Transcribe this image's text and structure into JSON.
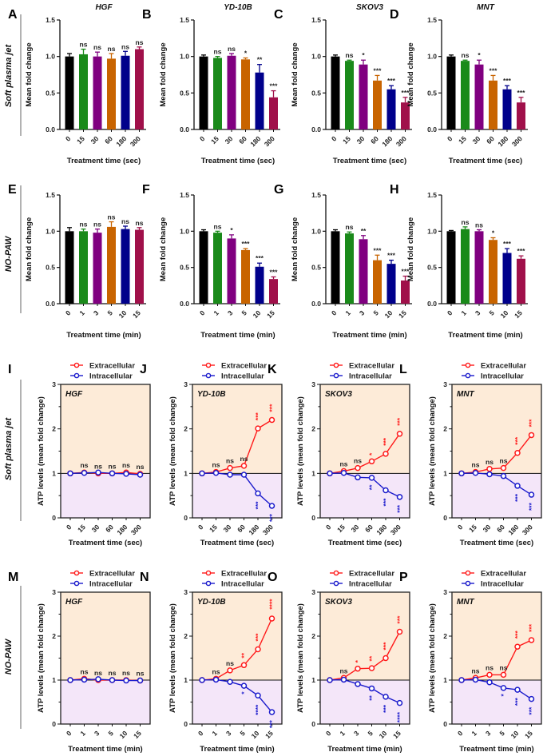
{
  "row_labels": [
    "Soft plasma jet",
    "NO-PAW",
    "Soft plasma jet",
    "NO-PAW"
  ],
  "colors": {
    "bars": [
      "#000000",
      "#1a8a1a",
      "#800080",
      "#c86400",
      "#00008b",
      "#a0104a"
    ],
    "extracellular": "#ff1a1a",
    "intracellular": "#1a1acc",
    "upper_region": "#fdebd8",
    "lower_region": "#f4e6f9"
  },
  "chart_data": [
    {
      "letter": "A",
      "type": "bar",
      "title": "HGF",
      "ylabel": "Mean fold change",
      "xlabel": "Treatment time (sec)",
      "categories": [
        "0",
        "15",
        "30",
        "60",
        "180",
        "300"
      ],
      "ylim": [
        0,
        1.5
      ],
      "yticks": [
        "0.0",
        "0.5",
        "1.0",
        "1.5"
      ],
      "values": [
        1.0,
        1.03,
        1.0,
        0.97,
        1.01,
        1.1
      ],
      "errors": [
        0.04,
        0.07,
        0.06,
        0.07,
        0.06,
        0.03
      ],
      "significance": [
        "",
        "ns",
        "ns",
        "ns",
        "ns",
        "ns"
      ]
    },
    {
      "letter": "B",
      "type": "bar",
      "title": "YD-10B",
      "ylabel": "Mean fold change",
      "xlabel": "Treatment time (sec)",
      "categories": [
        "0",
        "15",
        "30",
        "60",
        "180",
        "300"
      ],
      "ylim": [
        0,
        1.5
      ],
      "yticks": [
        "0.0",
        "0.5",
        "1.0",
        "1.5"
      ],
      "values": [
        1.0,
        0.98,
        1.01,
        0.96,
        0.78,
        0.44
      ],
      "errors": [
        0.02,
        0.02,
        0.03,
        0.02,
        0.11,
        0.09
      ],
      "significance": [
        "",
        "ns",
        "ns",
        "*",
        "**",
        "***"
      ]
    },
    {
      "letter": "C",
      "type": "bar",
      "title": "SKOV3",
      "ylabel": "Mean fold change",
      "xlabel": "Treatment time (sec)",
      "categories": [
        "0",
        "15",
        "30",
        "60",
        "180",
        "300"
      ],
      "ylim": [
        0,
        1.5
      ],
      "yticks": [
        "0.0",
        "0.5",
        "1.0",
        "1.5"
      ],
      "values": [
        1.0,
        0.94,
        0.89,
        0.67,
        0.55,
        0.37
      ],
      "errors": [
        0.02,
        0.01,
        0.06,
        0.07,
        0.05,
        0.07
      ],
      "significance": [
        "",
        "ns",
        "*",
        "***",
        "***",
        "***"
      ]
    },
    {
      "letter": "D",
      "type": "bar",
      "title": "MNT",
      "ylabel": "Mean fold change",
      "xlabel": "Treatment time (sec)",
      "categories": [
        "0",
        "15",
        "30",
        "60",
        "180",
        "300"
      ],
      "ylim": [
        0,
        1.5
      ],
      "yticks": [
        "0.0",
        "0.5",
        "1.0",
        "1.5"
      ],
      "values": [
        1.0,
        0.94,
        0.89,
        0.67,
        0.55,
        0.37
      ],
      "errors": [
        0.02,
        0.01,
        0.06,
        0.07,
        0.05,
        0.07
      ],
      "significance": [
        "",
        "ns",
        "*",
        "***",
        "***",
        "***"
      ]
    },
    {
      "letter": "E",
      "type": "bar",
      "title": "",
      "ylabel": "Mean fold change",
      "xlabel": "Treatment time (min)",
      "categories": [
        "0",
        "1",
        "3",
        "5",
        "10",
        "15"
      ],
      "ylim": [
        0,
        1.5
      ],
      "yticks": [
        "0.0",
        "0.5",
        "1.0",
        "1.5"
      ],
      "values": [
        1.0,
        1.0,
        0.98,
        1.06,
        1.03,
        1.02
      ],
      "errors": [
        0.05,
        0.03,
        0.05,
        0.07,
        0.04,
        0.03
      ],
      "significance": [
        "",
        "ns",
        "ns",
        "ns",
        "ns",
        "ns"
      ]
    },
    {
      "letter": "F",
      "type": "bar",
      "title": "",
      "ylabel": "Mean fold change",
      "xlabel": "Treatment time (min)",
      "categories": [
        "0",
        "1",
        "3",
        "5",
        "10",
        "15"
      ],
      "ylim": [
        0,
        1.5
      ],
      "yticks": [
        "0.0",
        "0.5",
        "1.0",
        "1.5"
      ],
      "values": [
        1.0,
        0.98,
        0.9,
        0.74,
        0.51,
        0.34
      ],
      "errors": [
        0.02,
        0.02,
        0.05,
        0.02,
        0.05,
        0.03
      ],
      "significance": [
        "",
        "ns",
        "*",
        "***",
        "***",
        "***"
      ]
    },
    {
      "letter": "G",
      "type": "bar",
      "title": "",
      "ylabel": "Mean fold change",
      "xlabel": "Treatment time (min)",
      "categories": [
        "0",
        "1",
        "3",
        "5",
        "10",
        "15"
      ],
      "ylim": [
        0,
        1.5
      ],
      "yticks": [
        "0.0",
        "0.5",
        "1.0",
        "1.5"
      ],
      "values": [
        1.0,
        0.97,
        0.89,
        0.6,
        0.55,
        0.32
      ],
      "errors": [
        0.02,
        0.02,
        0.05,
        0.07,
        0.05,
        0.06
      ],
      "significance": [
        "",
        "ns",
        "**",
        "***",
        "***",
        "***"
      ]
    },
    {
      "letter": "H",
      "type": "bar",
      "title": "",
      "ylabel": "Mean fold change",
      "xlabel": "Treatment time (min)",
      "categories": [
        "0",
        "1",
        "3",
        "5",
        "10",
        "15"
      ],
      "ylim": [
        0,
        1.5
      ],
      "yticks": [
        "0.0",
        "0.5",
        "1.0",
        "1.5"
      ],
      "values": [
        1.0,
        1.03,
        1.0,
        0.88,
        0.7,
        0.62
      ],
      "errors": [
        0.01,
        0.03,
        0.02,
        0.03,
        0.06,
        0.04
      ],
      "significance": [
        "",
        "ns",
        "ns",
        "*",
        "***",
        "***"
      ]
    },
    {
      "letter": "I",
      "type": "line",
      "title": "HGF",
      "ylabel": "ATP levels (mean fold change)",
      "xlabel": "Treatment time (sec)",
      "categories": [
        "0",
        "15",
        "30",
        "60",
        "180",
        "300"
      ],
      "ylim": [
        0,
        3
      ],
      "yticks": [
        "0",
        "1",
        "2",
        "3"
      ],
      "legend": "top",
      "series": [
        {
          "name": "Extracellular",
          "values": [
            1,
            1.02,
            1.0,
            1.0,
            1.02,
            0.99
          ],
          "significance": [
            "",
            "ns",
            "ns",
            "ns",
            "ns",
            "ns"
          ]
        },
        {
          "name": "Intracellular",
          "values": [
            1,
            1.01,
            1.02,
            1.0,
            0.99,
            0.97
          ],
          "significance": [
            "",
            "",
            "",
            "",
            "",
            ""
          ]
        }
      ]
    },
    {
      "letter": "J",
      "type": "line",
      "title": "YD-10B",
      "ylabel": "ATP levels (mean fold change)",
      "xlabel": "Treatment time (sec)",
      "categories": [
        "0",
        "15",
        "30",
        "60",
        "180",
        "300"
      ],
      "ylim": [
        0,
        3
      ],
      "yticks": [
        "0",
        "1",
        "2",
        "3"
      ],
      "legend": "top",
      "series": [
        {
          "name": "Extracellular",
          "values": [
            1,
            1.03,
            1.12,
            1.17,
            2.01,
            2.2
          ],
          "significance": [
            "",
            "ns",
            "ns",
            "ns",
            "***",
            "***"
          ]
        },
        {
          "name": "Intracellular",
          "values": [
            1,
            1.01,
            0.97,
            0.97,
            0.55,
            0.27
          ],
          "significance": [
            "",
            "",
            "",
            "",
            "***",
            "***"
          ]
        }
      ]
    },
    {
      "letter": "K",
      "type": "line",
      "title": "SKOV3",
      "ylabel": "ATP levels (mean fold change)",
      "xlabel": "Treatment time (sec)",
      "categories": [
        "0",
        "15",
        "30",
        "60",
        "180",
        "300"
      ],
      "ylim": [
        0,
        3
      ],
      "yticks": [
        "0",
        "1",
        "2",
        "3"
      ],
      "legend": "top",
      "series": [
        {
          "name": "Extracellular",
          "values": [
            1,
            1.05,
            1.12,
            1.27,
            1.44,
            1.89
          ],
          "significance": [
            "",
            "ns",
            "ns",
            "*",
            "***",
            "***"
          ]
        },
        {
          "name": "Intracellular",
          "values": [
            1,
            1.01,
            0.91,
            0.9,
            0.62,
            0.47
          ],
          "significance": [
            "",
            "",
            "",
            "**",
            "***",
            "***"
          ]
        }
      ]
    },
    {
      "letter": "L",
      "type": "line",
      "title": "MNT",
      "ylabel": "ATP levels (mean fold change)",
      "xlabel": "Treatment time (sec)",
      "categories": [
        "0",
        "15",
        "30",
        "60",
        "180",
        "300"
      ],
      "ylim": [
        0,
        3
      ],
      "yticks": [
        "0",
        "1",
        "2",
        "3"
      ],
      "legend": "top",
      "series": [
        {
          "name": "Extracellular",
          "values": [
            1,
            1.03,
            1.1,
            1.12,
            1.46,
            1.86
          ],
          "significance": [
            "",
            "ns",
            "ns",
            "ns",
            "***",
            "***"
          ]
        },
        {
          "name": "Intracellular",
          "values": [
            1,
            1.01,
            0.98,
            0.94,
            0.72,
            0.52
          ],
          "significance": [
            "",
            "",
            "",
            "",
            "***",
            "***"
          ]
        }
      ]
    },
    {
      "letter": "M",
      "type": "line",
      "title": "HGF",
      "ylabel": "ATP levels (mean fold change)",
      "xlabel": "Treatment time (min)",
      "categories": [
        "0",
        "1",
        "3",
        "5",
        "10",
        "15"
      ],
      "ylim": [
        0,
        3
      ],
      "yticks": [
        "0",
        "1",
        "2",
        "3"
      ],
      "legend": "top",
      "series": [
        {
          "name": "Extracellular",
          "values": [
            1,
            1.03,
            1.0,
            1.0,
            1.0,
            0.99
          ],
          "significance": [
            "",
            "ns",
            "ns",
            "ns",
            "ns",
            "ns"
          ]
        },
        {
          "name": "Intracellular",
          "values": [
            1,
            1.01,
            1.02,
            1.0,
            0.99,
            0.99
          ],
          "significance": [
            "",
            "",
            "",
            "",
            "",
            ""
          ]
        }
      ]
    },
    {
      "letter": "N",
      "type": "line",
      "title": "YD-10B",
      "ylabel": "ATP levels (mean fold change)",
      "xlabel": "Treatment time (min)",
      "categories": [
        "0",
        "1",
        "3",
        "5",
        "10",
        "15"
      ],
      "ylim": [
        0,
        3
      ],
      "yticks": [
        "0",
        "1",
        "2",
        "3"
      ],
      "legend": "top",
      "series": [
        {
          "name": "Extracellular",
          "values": [
            1,
            1.03,
            1.22,
            1.34,
            1.7,
            2.4
          ],
          "significance": [
            "",
            "ns",
            "ns",
            "**",
            "***",
            "****"
          ]
        },
        {
          "name": "Intracellular",
          "values": [
            1,
            1.01,
            0.96,
            0.87,
            0.65,
            0.27
          ],
          "significance": [
            "",
            "",
            "",
            "*",
            "****",
            "***"
          ]
        }
      ]
    },
    {
      "letter": "O",
      "type": "line",
      "title": "SKOV3",
      "ylabel": "ATP levels (mean fold change)",
      "xlabel": "Treatment time (min)",
      "categories": [
        "0",
        "1",
        "3",
        "5",
        "10",
        "15"
      ],
      "ylim": [
        0,
        3
      ],
      "yticks": [
        "0",
        "1",
        "2",
        "3"
      ],
      "legend": "top",
      "series": [
        {
          "name": "Extracellular",
          "values": [
            1,
            1.05,
            1.26,
            1.27,
            1.5,
            2.1
          ],
          "significance": [
            "",
            "ns",
            "*",
            "**",
            "***",
            "***"
          ]
        },
        {
          "name": "Intracellular",
          "values": [
            1,
            1.01,
            0.91,
            0.81,
            0.62,
            0.48
          ],
          "significance": [
            "",
            "",
            "",
            "**",
            "***",
            "****"
          ]
        }
      ]
    },
    {
      "letter": "P",
      "type": "line",
      "title": "MNT",
      "ylabel": "ATP levels (mean fold change)",
      "xlabel": "Treatment time (min)",
      "categories": [
        "0",
        "1",
        "3",
        "5",
        "10",
        "15"
      ],
      "ylim": [
        0,
        3
      ],
      "yticks": [
        "0",
        "1",
        "2",
        "3"
      ],
      "legend": "top",
      "series": [
        {
          "name": "Extracellular",
          "values": [
            1,
            1.05,
            1.12,
            1.12,
            1.76,
            1.91
          ],
          "significance": [
            "",
            "ns",
            "ns",
            "ns",
            "***",
            "***"
          ]
        },
        {
          "name": "Intracellular",
          "values": [
            1,
            1.01,
            0.95,
            0.82,
            0.78,
            0.57
          ],
          "significance": [
            "",
            "",
            "",
            "*",
            "***",
            "***"
          ]
        }
      ]
    }
  ]
}
